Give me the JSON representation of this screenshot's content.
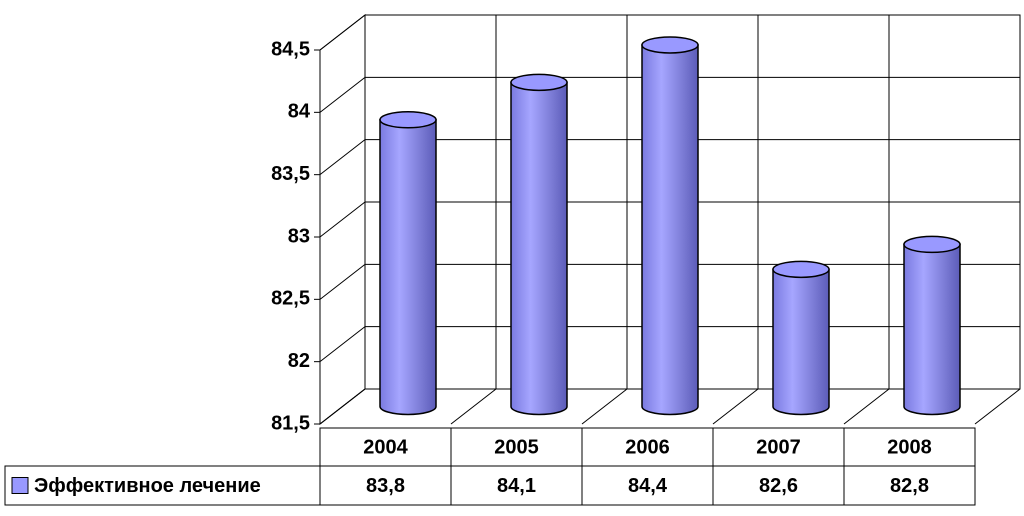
{
  "chart_data": {
    "type": "bar",
    "categories": [
      "2004",
      "2005",
      "2006",
      "2007",
      "2008"
    ],
    "series": [
      {
        "name": "Эффективное лечение",
        "color": "#9999ff",
        "values": [
          83.8,
          84.1,
          84.4,
          82.6,
          82.8
        ],
        "value_labels": [
          "83,8",
          "84,1",
          "84,4",
          "82,6",
          "82,8"
        ]
      }
    ],
    "ylim": [
      81.5,
      84.5
    ],
    "yticks": [
      {
        "value": 81.5,
        "label": "81,5"
      },
      82,
      {
        "value": 82.5,
        "label": "82,5"
      },
      83,
      {
        "value": 83.5,
        "label": "83,5"
      },
      84,
      {
        "value": 84.5,
        "label": "84,5"
      }
    ],
    "grid": true
  }
}
